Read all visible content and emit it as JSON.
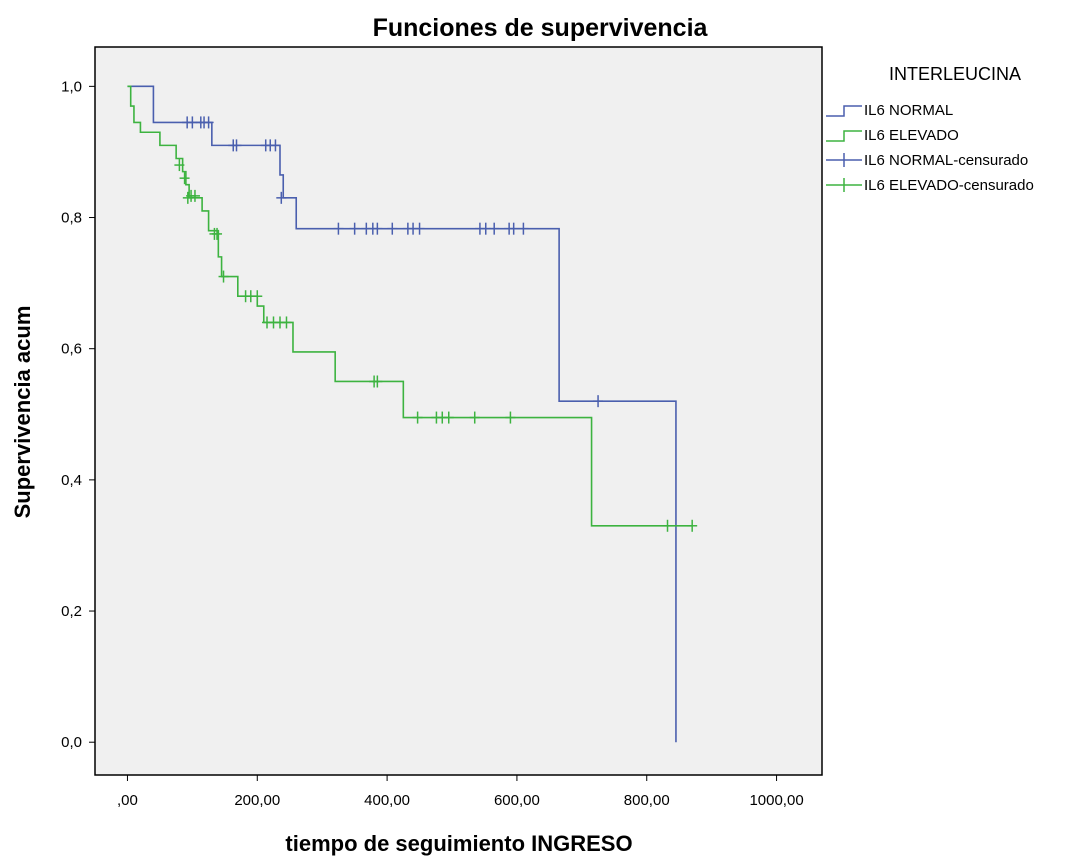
{
  "chart_data": {
    "type": "line",
    "title": "Funciones de supervivencia",
    "xlabel": "tiempo de seguimiento INGRESO",
    "ylabel": "Supervivencia acum",
    "xlim": [
      -50,
      1070
    ],
    "ylim": [
      -0.05,
      1.06
    ],
    "x_ticks": [
      0,
      200,
      400,
      600,
      800,
      1000
    ],
    "x_tick_labels": [
      ",00",
      "200,00",
      "400,00",
      "600,00",
      "800,00",
      "1000,00"
    ],
    "y_ticks": [
      0,
      0.2,
      0.4,
      0.6,
      0.8,
      1.0
    ],
    "y_tick_labels": [
      "0,0",
      "0,2",
      "0,4",
      "0,6",
      "0,8",
      "1,0"
    ],
    "plot_background": "#f0f0f0",
    "grid": false,
    "legend_title": "INTERLEUCINA",
    "legend_position": "right",
    "legend": [
      {
        "label": "IL6 NORMAL",
        "kind": "line",
        "color": "#4a5fae"
      },
      {
        "label": "IL6 ELEVADO",
        "kind": "line",
        "color": "#3db340"
      },
      {
        "label": "IL6 NORMAL-censurado",
        "kind": "cross",
        "color": "#4a5fae"
      },
      {
        "label": "IL6 ELEVADO-censurado",
        "kind": "cross",
        "color": "#3db340"
      }
    ],
    "series": [
      {
        "name": "IL6 NORMAL",
        "color": "#4a5fae",
        "steps": [
          [
            0,
            1.0
          ],
          [
            40,
            0.945
          ],
          [
            130,
            0.91
          ],
          [
            235,
            0.865
          ],
          [
            240,
            0.83
          ],
          [
            260,
            0.783
          ],
          [
            665,
            0.52
          ],
          [
            845,
            0.0
          ]
        ],
        "end_x": 845,
        "censored": [
          [
            92,
            0.945
          ],
          [
            100,
            0.945
          ],
          [
            113,
            0.945
          ],
          [
            118,
            0.945
          ],
          [
            125,
            0.945
          ],
          [
            163,
            0.91
          ],
          [
            168,
            0.91
          ],
          [
            213,
            0.91
          ],
          [
            220,
            0.91
          ],
          [
            228,
            0.91
          ],
          [
            237,
            0.83
          ],
          [
            325,
            0.783
          ],
          [
            350,
            0.783
          ],
          [
            368,
            0.783
          ],
          [
            378,
            0.783
          ],
          [
            385,
            0.783
          ],
          [
            408,
            0.783
          ],
          [
            432,
            0.783
          ],
          [
            440,
            0.783
          ],
          [
            450,
            0.783
          ],
          [
            543,
            0.783
          ],
          [
            552,
            0.783
          ],
          [
            565,
            0.783
          ],
          [
            588,
            0.783
          ],
          [
            595,
            0.783
          ],
          [
            610,
            0.783
          ],
          [
            725,
            0.52
          ]
        ]
      },
      {
        "name": "IL6 ELEVADO",
        "color": "#3db340",
        "steps": [
          [
            0,
            1.0
          ],
          [
            5,
            0.97
          ],
          [
            10,
            0.945
          ],
          [
            20,
            0.93
          ],
          [
            50,
            0.91
          ],
          [
            75,
            0.89
          ],
          [
            85,
            0.87
          ],
          [
            90,
            0.85
          ],
          [
            95,
            0.83
          ],
          [
            115,
            0.81
          ],
          [
            125,
            0.78
          ],
          [
            140,
            0.74
          ],
          [
            145,
            0.71
          ],
          [
            170,
            0.68
          ],
          [
            200,
            0.665
          ],
          [
            210,
            0.64
          ],
          [
            255,
            0.595
          ],
          [
            320,
            0.55
          ],
          [
            425,
            0.495
          ],
          [
            715,
            0.33
          ]
        ],
        "end_x": 870,
        "censored": [
          [
            80,
            0.88
          ],
          [
            88,
            0.86
          ],
          [
            93,
            0.83
          ],
          [
            98,
            0.833
          ],
          [
            104,
            0.833
          ],
          [
            134,
            0.775
          ],
          [
            138,
            0.775
          ],
          [
            148,
            0.71
          ],
          [
            182,
            0.68
          ],
          [
            190,
            0.68
          ],
          [
            200,
            0.68
          ],
          [
            215,
            0.64
          ],
          [
            225,
            0.64
          ],
          [
            235,
            0.64
          ],
          [
            245,
            0.64
          ],
          [
            380,
            0.55
          ],
          [
            385,
            0.55
          ],
          [
            447,
            0.495
          ],
          [
            476,
            0.495
          ],
          [
            485,
            0.495
          ],
          [
            495,
            0.495
          ],
          [
            535,
            0.495
          ],
          [
            590,
            0.495
          ],
          [
            832,
            0.33
          ],
          [
            870,
            0.33
          ]
        ]
      }
    ]
  }
}
